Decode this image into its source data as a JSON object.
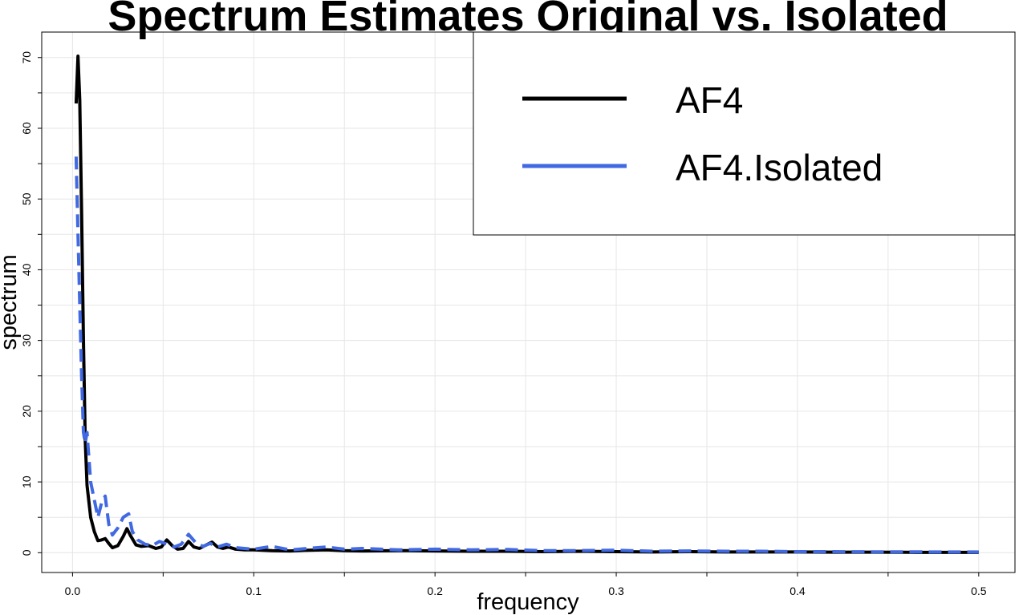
{
  "chart_data": {
    "type": "line",
    "title": "Spectrum Estimates Original vs. Isolated",
    "xlabel": "frequency",
    "ylabel": "spectrum",
    "xlim": [
      -0.017,
      0.52
    ],
    "ylim": [
      -2.8,
      73.6
    ],
    "x_ticks": [
      0.0,
      0.1,
      0.2,
      0.3,
      0.4,
      0.5
    ],
    "x_tick_labels": [
      "0.0",
      "0.1",
      "0.2",
      "0.3",
      "0.4",
      "0.5"
    ],
    "y_ticks": [
      0,
      10,
      20,
      30,
      40,
      50,
      60,
      70
    ],
    "y_tick_labels": [
      "0",
      "10",
      "20",
      "30",
      "40",
      "50",
      "60",
      "70"
    ],
    "grid": true,
    "legend": {
      "position": "top-right",
      "entries": [
        "AF4",
        "AF4.Isolated"
      ]
    },
    "series": [
      {
        "name": "AF4",
        "color": "#000000",
        "style": "solid",
        "x": [
          0.002,
          0.003,
          0.004,
          0.005,
          0.006,
          0.007,
          0.008,
          0.01,
          0.012,
          0.014,
          0.016,
          0.018,
          0.02,
          0.022,
          0.025,
          0.028,
          0.03,
          0.032,
          0.035,
          0.038,
          0.042,
          0.046,
          0.049,
          0.052,
          0.055,
          0.058,
          0.061,
          0.064,
          0.067,
          0.07,
          0.073,
          0.077,
          0.08,
          0.083,
          0.086,
          0.09,
          0.095,
          0.1,
          0.11,
          0.12,
          0.13,
          0.14,
          0.15,
          0.16,
          0.18,
          0.2,
          0.22,
          0.24,
          0.26,
          0.28,
          0.3,
          0.32,
          0.34,
          0.36,
          0.38,
          0.4,
          0.42,
          0.44,
          0.46,
          0.48,
          0.5
        ],
        "y": [
          63.5,
          70.2,
          64.0,
          48.0,
          30.0,
          16.0,
          9.5,
          5.0,
          3.0,
          1.7,
          1.8,
          2.0,
          1.3,
          0.7,
          1.0,
          2.3,
          3.4,
          2.4,
          1.1,
          0.9,
          1.0,
          0.6,
          0.8,
          1.8,
          1.0,
          0.5,
          0.6,
          1.6,
          0.8,
          0.6,
          1.0,
          1.5,
          0.8,
          0.6,
          0.8,
          0.5,
          0.4,
          0.4,
          0.3,
          0.25,
          0.35,
          0.4,
          0.3,
          0.25,
          0.3,
          0.25,
          0.2,
          0.2,
          0.15,
          0.2,
          0.15,
          0.1,
          0.15,
          0.1,
          0.1,
          0.1,
          0.08,
          0.08,
          0.06,
          0.05,
          0.05
        ]
      },
      {
        "name": "AF4.Isolated",
        "color": "#4169e1",
        "style": "dashed",
        "x": [
          0.002,
          0.003,
          0.004,
          0.005,
          0.006,
          0.007,
          0.008,
          0.01,
          0.012,
          0.014,
          0.016,
          0.018,
          0.02,
          0.022,
          0.025,
          0.028,
          0.031,
          0.033,
          0.036,
          0.04,
          0.044,
          0.048,
          0.052,
          0.056,
          0.06,
          0.064,
          0.068,
          0.072,
          0.076,
          0.08,
          0.085,
          0.09,
          0.1,
          0.11,
          0.12,
          0.13,
          0.14,
          0.15,
          0.16,
          0.18,
          0.2,
          0.22,
          0.24,
          0.26,
          0.28,
          0.3,
          0.32,
          0.34,
          0.36,
          0.38,
          0.4,
          0.42,
          0.44,
          0.46,
          0.48,
          0.5
        ],
        "y": [
          56.0,
          45.0,
          35.0,
          25.0,
          17.0,
          15.5,
          17.0,
          10.0,
          7.5,
          5.0,
          7.0,
          8.0,
          4.0,
          2.5,
          3.5,
          5.0,
          5.5,
          3.0,
          1.8,
          1.2,
          1.0,
          1.6,
          1.2,
          0.8,
          1.2,
          2.6,
          1.4,
          0.9,
          1.3,
          0.8,
          1.2,
          0.7,
          0.5,
          0.9,
          0.4,
          0.6,
          0.8,
          0.5,
          0.6,
          0.4,
          0.5,
          0.4,
          0.45,
          0.3,
          0.3,
          0.35,
          0.2,
          0.25,
          0.2,
          0.2,
          0.15,
          0.15,
          0.12,
          0.12,
          0.1,
          0.1
        ]
      }
    ]
  }
}
